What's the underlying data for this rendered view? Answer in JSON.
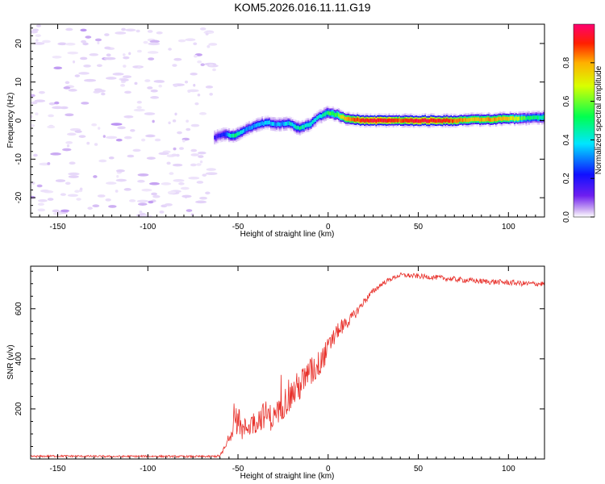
{
  "title": "KOM5.2026.016.11.11.G19",
  "chart_data": [
    {
      "type": "heatmap",
      "title": "KOM5.2026.016.11.11.G19",
      "xlabel": "Height of straight line (km)",
      "ylabel": "Frequency (Hz)",
      "xlim": [
        -165,
        120
      ],
      "ylim": [
        -25,
        25
      ],
      "xticks": [
        -150,
        -100,
        -50,
        0,
        50,
        100
      ],
      "yticks": [
        -20,
        -10,
        0,
        10,
        20
      ],
      "noise_region_x": [
        -165,
        -63
      ],
      "ridge": {
        "description": "frequency of the dominant spectral ridge versus height",
        "x": [
          -63,
          -58,
          -52,
          -46,
          -40,
          -34,
          -28,
          -22,
          -16,
          -10,
          -5,
          0,
          5,
          10,
          20,
          30,
          40,
          50,
          60,
          70,
          80,
          90,
          100,
          110,
          120
        ],
        "frequency": [
          -4.5,
          -3.5,
          -4,
          -2.5,
          -1.2,
          -0.5,
          -1,
          -0.6,
          -2,
          -1,
          1,
          2,
          1.5,
          0.5,
          0,
          0,
          0,
          0,
          0,
          0,
          0.2,
          0.3,
          0.5,
          0.6,
          0.8
        ],
        "amplitude": [
          0.25,
          0.35,
          0.55,
          0.4,
          0.4,
          0.45,
          0.4,
          0.45,
          0.5,
          0.5,
          0.45,
          0.55,
          0.6,
          0.8,
          0.9,
          0.95,
          0.85,
          0.95,
          0.9,
          0.85,
          0.75,
          0.8,
          0.75,
          0.55,
          0.5
        ]
      },
      "colorbar": {
        "label": "Normalized spectral amplitude",
        "range": [
          0,
          1
        ],
        "ticks": [
          0.0,
          0.2,
          0.4,
          0.6,
          0.8
        ],
        "tick_labels": [
          "0.0",
          "0.2",
          "0.4",
          "0.6",
          "0.8"
        ],
        "colormap": [
          "#ffffff",
          "#c9a8f2",
          "#6f1ff0",
          "#1010ff",
          "#00e6ff",
          "#00ff50",
          "#d9ff00",
          "#ffb000",
          "#ff2000",
          "#ff0070"
        ]
      }
    },
    {
      "type": "line",
      "xlabel": "Height of straight line (km)",
      "ylabel": "SNR (v/v)",
      "xlim": [
        -165,
        120
      ],
      "ylim": [
        0,
        770
      ],
      "xticks": [
        -150,
        -100,
        -50,
        0,
        50,
        100
      ],
      "yticks": [
        200,
        400,
        600
      ],
      "series": [
        {
          "name": "SNR",
          "color": "#e8302a",
          "x": [
            -165,
            -150,
            -120,
            -100,
            -80,
            -65,
            -60,
            -56,
            -52,
            -48,
            -45,
            -40,
            -35,
            -30,
            -25,
            -20,
            -15,
            -10,
            -5,
            0,
            5,
            10,
            15,
            20,
            25,
            30,
            35,
            40,
            50,
            60,
            70,
            80,
            90,
            100,
            110,
            120
          ],
          "y": [
            10,
            12,
            10,
            11,
            10,
            10,
            12,
            60,
            150,
            110,
            130,
            150,
            180,
            160,
            220,
            260,
            300,
            340,
            380,
            440,
            510,
            540,
            580,
            630,
            670,
            700,
            720,
            735,
            730,
            725,
            718,
            712,
            708,
            705,
            700,
            700
          ],
          "spread": [
            8,
            8,
            8,
            8,
            8,
            8,
            10,
            40,
            90,
            80,
            90,
            100,
            110,
            110,
            120,
            130,
            130,
            130,
            110,
            90,
            60,
            50,
            40,
            30,
            25,
            20,
            18,
            18,
            20,
            20,
            22,
            22,
            22,
            22,
            22,
            22
          ]
        }
      ]
    }
  ]
}
